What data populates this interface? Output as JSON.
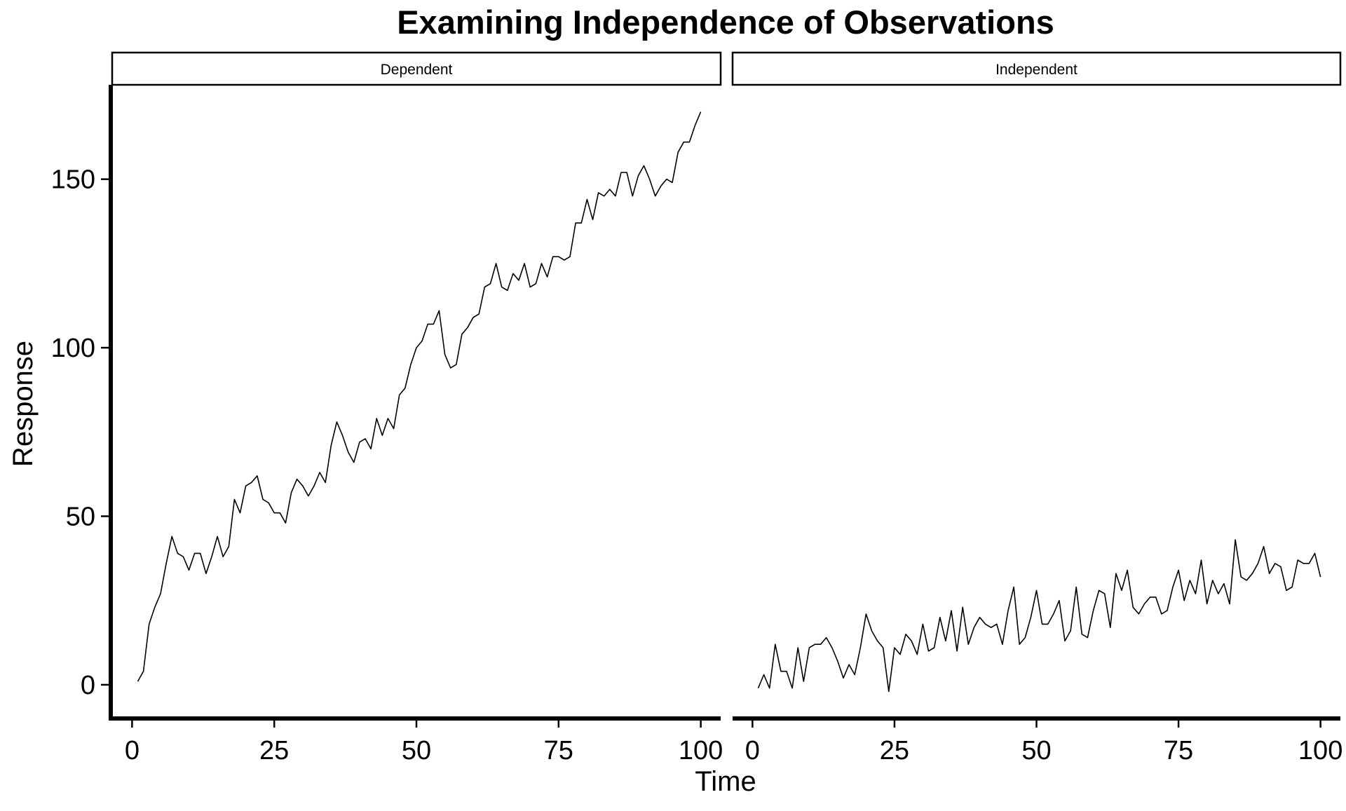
{
  "chart_data": {
    "type": "line",
    "title": "Examining Independence of Observations",
    "xlabel": "Time",
    "ylabel": "Response",
    "xlim": [
      -3.5,
      103.5
    ],
    "ylim": [
      -10,
      178
    ],
    "x_ticks": [
      0,
      25,
      50,
      75,
      100
    ],
    "y_ticks": [
      0,
      50,
      100,
      150
    ],
    "grid": false,
    "legend": "none",
    "line_color": "#000000",
    "facets": [
      {
        "strip_label": "Dependent",
        "x": [
          1,
          2,
          3,
          4,
          5,
          6,
          7,
          8,
          9,
          10,
          11,
          12,
          13,
          14,
          15,
          16,
          17,
          18,
          19,
          20,
          21,
          22,
          23,
          24,
          25,
          26,
          27,
          28,
          29,
          30,
          31,
          32,
          33,
          34,
          35,
          36,
          37,
          38,
          39,
          40,
          41,
          42,
          43,
          44,
          45,
          46,
          47,
          48,
          49,
          50,
          51,
          52,
          53,
          54,
          55,
          56,
          57,
          58,
          59,
          60,
          61,
          62,
          63,
          64,
          65,
          66,
          67,
          68,
          69,
          70,
          71,
          72,
          73,
          74,
          75,
          76,
          77,
          78,
          79,
          80,
          81,
          82,
          83,
          84,
          85,
          86,
          87,
          88,
          89,
          90,
          91,
          92,
          93,
          94,
          95,
          96,
          97,
          98,
          99,
          100
        ],
        "values": [
          1,
          4,
          18,
          23,
          27,
          36,
          44,
          39,
          38,
          34,
          39,
          39,
          33,
          38,
          44,
          38,
          41,
          55,
          51,
          59,
          60,
          62,
          55,
          54,
          51,
          51,
          48,
          57,
          61,
          59,
          56,
          59,
          63,
          60,
          71,
          78,
          74,
          69,
          66,
          72,
          73,
          70,
          79,
          74,
          79,
          76,
          86,
          88,
          95,
          100,
          102,
          107,
          107,
          111,
          98,
          94,
          95,
          104,
          106,
          109,
          110,
          118,
          119,
          125,
          118,
          117,
          122,
          120,
          125,
          118,
          119,
          125,
          121,
          127,
          127,
          126,
          127,
          137,
          137,
          144,
          138,
          146,
          145,
          147,
          145,
          152,
          152,
          145,
          151,
          154,
          150,
          145,
          148,
          150,
          149,
          158,
          161,
          161,
          166,
          170
        ]
      },
      {
        "strip_label": "Independent",
        "x": [
          1,
          2,
          3,
          4,
          5,
          6,
          7,
          8,
          9,
          10,
          11,
          12,
          13,
          14,
          15,
          16,
          17,
          18,
          19,
          20,
          21,
          22,
          23,
          24,
          25,
          26,
          27,
          28,
          29,
          30,
          31,
          32,
          33,
          34,
          35,
          36,
          37,
          38,
          39,
          40,
          41,
          42,
          43,
          44,
          45,
          46,
          47,
          48,
          49,
          50,
          51,
          52,
          53,
          54,
          55,
          56,
          57,
          58,
          59,
          60,
          61,
          62,
          63,
          64,
          65,
          66,
          67,
          68,
          69,
          70,
          71,
          72,
          73,
          74,
          75,
          76,
          77,
          78,
          79,
          80,
          81,
          82,
          83,
          84,
          85,
          86,
          87,
          88,
          89,
          90,
          91,
          92,
          93,
          94,
          95,
          96,
          97,
          98,
          99,
          100
        ],
        "values": [
          -1,
          3,
          -1,
          12,
          4,
          4,
          -1,
          11,
          1,
          11,
          12,
          12,
          14,
          11,
          7,
          2,
          6,
          3,
          11,
          21,
          16,
          13,
          11,
          -2,
          11,
          9,
          15,
          13,
          9,
          18,
          10,
          11,
          20,
          13,
          22,
          10,
          23,
          12,
          17,
          20,
          18,
          17,
          18,
          12,
          22,
          29,
          12,
          14,
          20,
          28,
          18,
          18,
          21,
          25,
          13,
          16,
          29,
          15,
          14,
          22,
          28,
          27,
          17,
          33,
          28,
          34,
          23,
          21,
          24,
          26,
          26,
          21,
          22,
          29,
          34,
          25,
          31,
          27,
          37,
          24,
          31,
          27,
          30,
          24,
          43,
          32,
          31,
          33,
          36,
          41,
          33,
          36,
          35,
          28,
          29,
          37,
          36,
          36,
          39,
          32
        ]
      }
    ]
  }
}
